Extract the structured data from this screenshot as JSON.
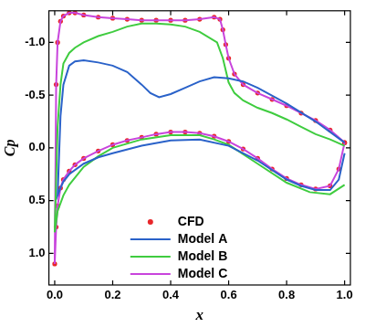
{
  "chart_data": {
    "type": "scatter",
    "x_label": "x",
    "y_label": "Cp",
    "xlim": [
      -0.02,
      1.02
    ],
    "xticks": [
      {
        "value": 0,
        "label": "0.0"
      },
      0.2,
      0.4,
      0.6,
      0.8,
      {
        "value": 1,
        "label": "1.0"
      }
    ],
    "ylim": [
      1.3,
      -1.3
    ],
    "yticks": [
      {
        "value": -1,
        "label": "-1.0"
      },
      -0.5,
      {
        "value": 0,
        "label": "0.0"
      },
      0.5,
      {
        "value": 1,
        "label": "1.0"
      }
    ],
    "grid": false,
    "legend": "bottom",
    "series": [
      {
        "name": "CFD",
        "color": "#e8262a",
        "marker": "circle",
        "line_style": "none",
        "x": [
          1.0,
          0.95,
          0.9,
          0.85,
          0.8,
          0.75,
          0.7,
          0.65,
          0.62,
          0.6,
          0.59,
          0.58,
          0.57,
          0.55,
          0.5,
          0.45,
          0.4,
          0.35,
          0.3,
          0.25,
          0.2,
          0.15,
          0.1,
          0.07,
          0.05,
          0.03,
          0.02,
          0.01,
          0.005,
          0.0,
          0.005,
          0.01,
          0.02,
          0.03,
          0.05,
          0.07,
          0.1,
          0.15,
          0.2,
          0.25,
          0.3,
          0.35,
          0.4,
          0.45,
          0.5,
          0.55,
          0.6,
          0.65,
          0.7,
          0.75,
          0.8,
          0.85,
          0.9,
          0.95,
          0.98,
          1.0
        ],
        "values": [
          -0.05,
          -0.17,
          -0.26,
          -0.33,
          -0.4,
          -0.46,
          -0.52,
          -0.6,
          -0.7,
          -0.85,
          -0.98,
          -1.12,
          -1.22,
          -1.24,
          -1.22,
          -1.21,
          -1.21,
          -1.21,
          -1.21,
          -1.22,
          -1.23,
          -1.24,
          -1.26,
          -1.28,
          -1.28,
          -1.25,
          -1.2,
          -1.0,
          -0.6,
          1.1,
          0.75,
          0.55,
          0.38,
          0.3,
          0.22,
          0.16,
          0.1,
          0.03,
          -0.03,
          -0.07,
          -0.1,
          -0.13,
          -0.15,
          -0.15,
          -0.14,
          -0.11,
          -0.06,
          0.01,
          0.1,
          0.2,
          0.29,
          0.35,
          0.39,
          0.36,
          0.2,
          -0.05
        ]
      },
      {
        "name": "Model A",
        "color": "#2a62c9",
        "marker": "none",
        "line_style": "solid",
        "x": [
          1.0,
          0.9,
          0.8,
          0.7,
          0.65,
          0.6,
          0.55,
          0.5,
          0.45,
          0.4,
          0.36,
          0.33,
          0.3,
          0.25,
          0.2,
          0.15,
          0.1,
          0.07,
          0.05,
          0.03,
          0.02,
          0.01,
          0.02,
          0.03,
          0.05,
          0.1,
          0.15,
          0.2,
          0.3,
          0.4,
          0.5,
          0.6,
          0.7,
          0.8,
          0.85,
          0.9,
          0.95,
          0.98,
          1.0
        ],
        "values": [
          -0.05,
          -0.25,
          -0.42,
          -0.57,
          -0.63,
          -0.66,
          -0.67,
          -0.63,
          -0.57,
          -0.51,
          -0.48,
          -0.52,
          -0.6,
          -0.72,
          -0.78,
          -0.81,
          -0.83,
          -0.82,
          -0.78,
          -0.6,
          -0.3,
          0.45,
          0.38,
          0.32,
          0.25,
          0.15,
          0.09,
          0.05,
          -0.02,
          -0.07,
          -0.08,
          -0.02,
          0.12,
          0.3,
          0.36,
          0.4,
          0.4,
          0.3,
          0.05
        ]
      },
      {
        "name": "Model B",
        "color": "#3fcc3f",
        "marker": "none",
        "line_style": "solid",
        "x": [
          1.0,
          0.95,
          0.9,
          0.85,
          0.8,
          0.75,
          0.7,
          0.65,
          0.62,
          0.6,
          0.58,
          0.56,
          0.5,
          0.45,
          0.4,
          0.35,
          0.3,
          0.25,
          0.2,
          0.15,
          0.1,
          0.07,
          0.05,
          0.03,
          0.02,
          0.01,
          0.0,
          0.01,
          0.03,
          0.05,
          0.1,
          0.15,
          0.2,
          0.3,
          0.4,
          0.5,
          0.55,
          0.6,
          0.7,
          0.8,
          0.88,
          0.95,
          1.0
        ],
        "values": [
          -0.02,
          -0.08,
          -0.13,
          -0.2,
          -0.27,
          -0.33,
          -0.38,
          -0.45,
          -0.52,
          -0.62,
          -0.85,
          -1.0,
          -1.1,
          -1.15,
          -1.17,
          -1.18,
          -1.18,
          -1.15,
          -1.1,
          -1.06,
          -1.0,
          -0.95,
          -0.9,
          -0.8,
          -0.6,
          -0.2,
          0.8,
          0.6,
          0.45,
          0.35,
          0.18,
          0.08,
          0.0,
          -0.08,
          -0.12,
          -0.12,
          -0.08,
          -0.03,
          0.15,
          0.33,
          0.42,
          0.44,
          0.35
        ]
      },
      {
        "name": "Model C",
        "color": "#c844dc",
        "marker": "none",
        "line_style": "solid",
        "x": [
          1.0,
          0.95,
          0.9,
          0.85,
          0.8,
          0.75,
          0.7,
          0.65,
          0.62,
          0.6,
          0.59,
          0.58,
          0.57,
          0.55,
          0.5,
          0.45,
          0.4,
          0.35,
          0.3,
          0.25,
          0.2,
          0.15,
          0.1,
          0.07,
          0.05,
          0.03,
          0.02,
          0.01,
          0.005,
          0.0,
          0.005,
          0.01,
          0.02,
          0.03,
          0.05,
          0.07,
          0.1,
          0.15,
          0.2,
          0.25,
          0.3,
          0.35,
          0.4,
          0.45,
          0.5,
          0.55,
          0.6,
          0.65,
          0.7,
          0.75,
          0.8,
          0.85,
          0.9,
          0.95,
          0.98,
          1.0
        ],
        "values": [
          -0.05,
          -0.17,
          -0.26,
          -0.33,
          -0.4,
          -0.46,
          -0.52,
          -0.6,
          -0.7,
          -0.85,
          -0.98,
          -1.12,
          -1.22,
          -1.24,
          -1.22,
          -1.21,
          -1.21,
          -1.21,
          -1.21,
          -1.22,
          -1.23,
          -1.24,
          -1.26,
          -1.28,
          -1.28,
          -1.25,
          -1.2,
          -1.0,
          -0.6,
          1.1,
          0.75,
          0.55,
          0.38,
          0.3,
          0.22,
          0.16,
          0.1,
          0.03,
          -0.03,
          -0.07,
          -0.1,
          -0.13,
          -0.15,
          -0.15,
          -0.14,
          -0.11,
          -0.06,
          0.01,
          0.1,
          0.2,
          0.29,
          0.35,
          0.39,
          0.36,
          0.2,
          -0.05
        ]
      }
    ]
  }
}
